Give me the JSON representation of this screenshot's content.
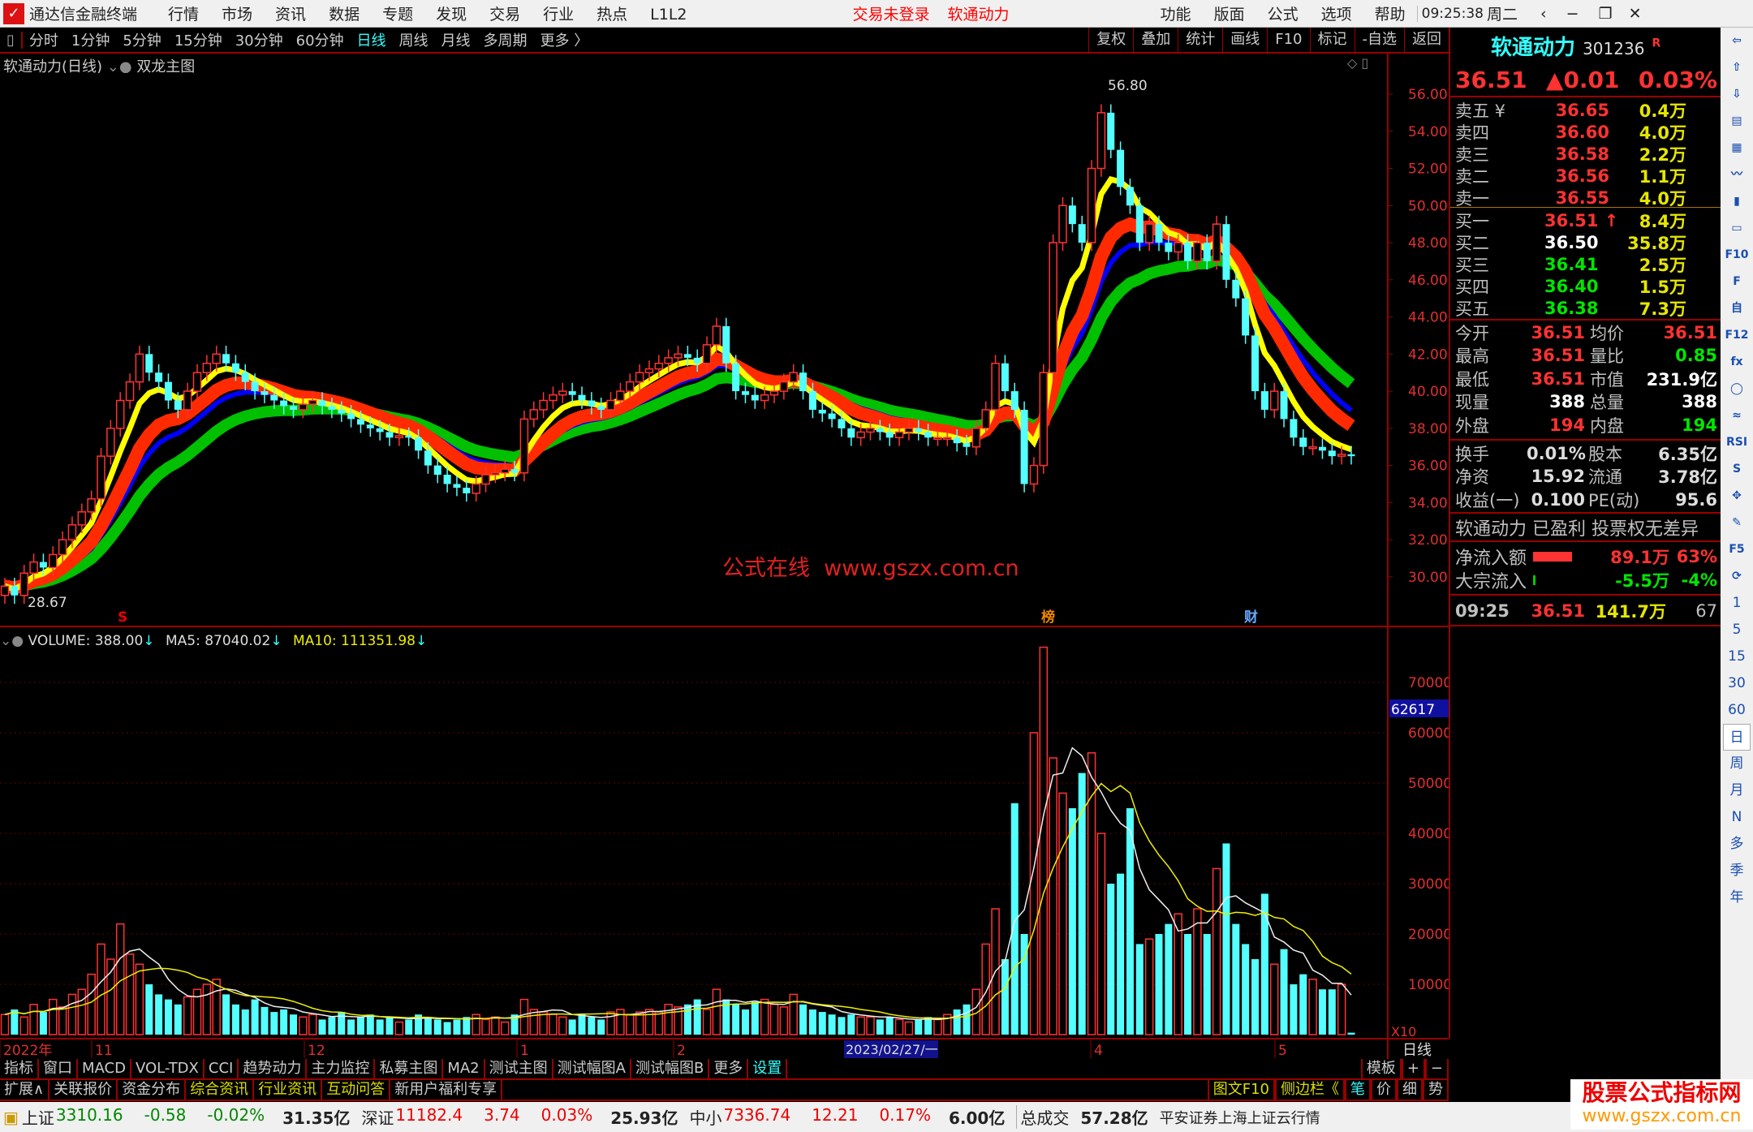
{
  "titlebar": {
    "app_title": "通达信金融终端",
    "menus": [
      "行情",
      "市场",
      "资讯",
      "数据",
      "专题",
      "发现",
      "交易",
      "行业",
      "热点",
      "L1L2"
    ],
    "login_status": "交易未登录",
    "stock_name": "软通动力",
    "right_menus": [
      "功能",
      "版面",
      "公式",
      "选项",
      "帮助"
    ],
    "clock": "09:25:38",
    "weekday": "周二"
  },
  "toolbar": {
    "periods": [
      "分时",
      "1分钟",
      "5分钟",
      "15分钟",
      "30分钟",
      "60分钟",
      "日线",
      "周线",
      "月线",
      "多周期",
      "更多 〉"
    ],
    "active_period": "日线",
    "right_buttons": [
      "复权",
      "叠加",
      "统计",
      "画线",
      "F10",
      "标记",
      "-自选",
      "返回"
    ]
  },
  "chart_title": {
    "stock": "软通动力(日线)",
    "indicator": "双龙主图"
  },
  "volume_legend": {
    "volume": "VOLUME: 388.00",
    "ma5": "MA5: 87040.02",
    "ma10": "MA10: 111351.98"
  },
  "chart_data": {
    "type": "candlestick",
    "price_axis": {
      "ticks": [
        "30.00",
        "32.00",
        "34.00",
        "36.00",
        "38.00",
        "40.00",
        "42.00",
        "44.00",
        "46.00",
        "48.00",
        "50.00",
        "52.00",
        "54.00",
        "56.00"
      ],
      "range": [
        30,
        56
      ]
    },
    "high_label": "56.80",
    "low_label": "28.67",
    "closes": [
      29.5,
      29.0,
      30.2,
      30.8,
      30.5,
      31.2,
      32.0,
      32.8,
      33.5,
      34.2,
      36.5,
      38.0,
      39.5,
      40.5,
      42.0,
      41.0,
      40.5,
      39.5,
      39.0,
      40.0,
      41.0,
      41.5,
      42.0,
      41.5,
      41.0,
      40.5,
      40.0,
      39.8,
      39.5,
      39.2,
      39.0,
      39.3,
      39.5,
      39.2,
      39.0,
      38.8,
      38.5,
      38.2,
      38.0,
      37.8,
      37.5,
      37.6,
      37.5,
      36.8,
      36.0,
      35.5,
      35.0,
      34.8,
      34.5,
      35.0,
      35.5,
      35.6,
      35.8,
      35.6,
      38.5,
      39.0,
      39.5,
      39.8,
      40.0,
      39.8,
      39.5,
      39.2,
      39.0,
      39.5,
      40.0,
      40.5,
      41.0,
      41.2,
      41.5,
      41.8,
      42.0,
      41.8,
      41.5,
      42.5,
      43.5,
      41.5,
      40.0,
      39.8,
      39.5,
      39.8,
      40.0,
      40.5,
      41.0,
      40.0,
      39.0,
      38.8,
      38.5,
      38.0,
      37.5,
      37.8,
      38.0,
      37.8,
      37.5,
      37.8,
      38.0,
      37.8,
      37.5,
      37.5,
      37.5,
      37.2,
      37.0,
      38.0,
      39.0,
      41.5,
      40.0,
      39.0,
      35.0,
      36.0,
      41.0,
      48.0,
      50.0,
      49.0,
      48.0,
      52.0,
      55.0,
      53.0,
      51.0,
      50.0,
      48.0,
      49.0,
      48.0,
      47.5,
      48.0,
      47.0,
      48.0,
      47.0,
      49.0,
      46.0,
      45.0,
      43.0,
      40.0,
      39.0,
      40.0,
      38.5,
      37.5,
      37.0,
      37.0,
      36.8,
      36.5,
      36.6,
      36.5
    ],
    "volumes": [
      4000,
      5000,
      3500,
      6000,
      4500,
      7000,
      5500,
      8000,
      9000,
      12000,
      18000,
      15000,
      22000,
      16000,
      14000,
      10000,
      8000,
      7000,
      6000,
      7500,
      9000,
      10000,
      11000,
      8000,
      6000,
      5000,
      7000,
      5500,
      4500,
      5000,
      4000,
      3500,
      4000,
      3000,
      3500,
      4500,
      3000,
      3500,
      4000,
      3000,
      3500,
      2500,
      3000,
      4000,
      3500,
      3000,
      2500,
      3000,
      3500,
      4000,
      3000,
      3500,
      2500,
      4000,
      7000,
      5000,
      4500,
      4000,
      3500,
      3000,
      4000,
      3500,
      3000,
      4500,
      5000,
      4000,
      4500,
      5000,
      4500,
      6000,
      5500,
      6000,
      7000,
      5000,
      9000,
      7000,
      6000,
      5000,
      6500,
      7000,
      6000,
      5500,
      8000,
      6000,
      5000,
      4500,
      4000,
      3500,
      4000,
      3500,
      3500,
      3000,
      3500,
      3000,
      2500,
      3000,
      3500,
      3000,
      4000,
      5000,
      6000,
      9000,
      18000,
      25000,
      15000,
      46000,
      20000,
      60000,
      77000,
      55000,
      48000,
      45000,
      52000,
      56000,
      40000,
      30000,
      32000,
      45000,
      18000,
      19000,
      20000,
      22000,
      24000,
      20000,
      25000,
      20000,
      33000,
      38000,
      22000,
      18000,
      15000,
      28000,
      14000,
      17000,
      10000,
      12000,
      11000,
      9000,
      9000,
      10000,
      388
    ],
    "volume_axis": {
      "ticks": [
        "10000",
        "20000",
        "30000",
        "40000",
        "50000",
        "60000",
        "70000"
      ],
      "range": [
        0,
        77000
      ],
      "multiplier": "X10",
      "highlight": "62617"
    },
    "markers": [
      "S",
      "榜",
      "财"
    ],
    "date_axis": {
      "labels": [
        "2022年",
        "11",
        "12",
        "1",
        "2",
        "4",
        "5"
      ],
      "cursor_date": "2023/02/27/一",
      "period": "日线"
    },
    "colors": {
      "up": "#ff3232",
      "down": "#54ffff",
      "ma_fast": "#ffff00",
      "ma_band1": "#ff2a00",
      "ma_mid": "#0000ff",
      "ma_band2": "#00c000"
    }
  },
  "watermark": {
    "text": "公式在线  www.gszx.com.cn"
  },
  "quote": {
    "name": "软通动力",
    "code": "301236",
    "flag": "R",
    "price": "36.51",
    "change": "▲0.01",
    "pct": "0.03%",
    "asks": [
      {
        "label": "卖五 ¥",
        "price": "36.65",
        "vol": "0.4万"
      },
      {
        "label": "卖四",
        "price": "36.60",
        "vol": "4.0万"
      },
      {
        "label": "卖三",
        "price": "36.58",
        "vol": "2.2万"
      },
      {
        "label": "卖二",
        "price": "36.56",
        "vol": "1.1万"
      },
      {
        "label": "卖一",
        "price": "36.55",
        "vol": "4.0万"
      }
    ],
    "bids": [
      {
        "label": "买一",
        "price": "36.51 ↑",
        "vol": "8.4万"
      },
      {
        "label": "买二",
        "price": "36.50",
        "vol": "35.8万"
      },
      {
        "label": "买三",
        "price": "36.41",
        "vol": "2.5万"
      },
      {
        "label": "买四",
        "price": "36.40",
        "vol": "1.5万"
      },
      {
        "label": "买五",
        "price": "36.38",
        "vol": "7.3万"
      }
    ],
    "stats": [
      {
        "l1": "今开",
        "v1": "36.51",
        "l2": "均价",
        "v2": "36.51"
      },
      {
        "l1": "最高",
        "v1": "36.51",
        "l2": "量比",
        "v2": "0.85"
      },
      {
        "l1": "最低",
        "v1": "36.51",
        "l2": "市值",
        "v2": "231.9亿"
      },
      {
        "l1": "现量",
        "v1": "388",
        "l2": "总量",
        "v2": "388"
      },
      {
        "l1": "外盘",
        "v1": "194",
        "l2": "内盘",
        "v2": "194"
      }
    ],
    "stats2": [
      {
        "l1": "换手",
        "v1": "0.01%",
        "l2": "股本",
        "v2": "6.35亿"
      },
      {
        "l1": "净资",
        "v1": "15.92",
        "l2": "流通",
        "v2": "3.78亿"
      },
      {
        "l1": "收益(一)",
        "v1": "0.100",
        "l2": "PE(动)",
        "v2": "95.6"
      }
    ],
    "notice": "软通动力 已盈利 投票权无差异",
    "flows": [
      {
        "label": "净流入额",
        "amount": "89.1万",
        "pct": "63%",
        "bar": 0.63
      },
      {
        "label": "大宗流入",
        "amount": "-5.5万",
        "pct": "-4%",
        "bar": 0.04
      }
    ],
    "tick": {
      "time": "09:25",
      "price": "36.51",
      "vol": "141.7万",
      "count": "67"
    }
  },
  "sidebar": {
    "icons": [
      "arrow-left-icon",
      "arrow-up-icon",
      "arrow-down-icon",
      "report-icon",
      "grid-icon",
      "line-chart-icon",
      "candles-icon",
      "window-icon",
      "f10-icon",
      "f10-alt-icon",
      "self-select-icon",
      "f12-icon",
      "formula-icon",
      "circle-icon",
      "wave-icon",
      "rsi-icon",
      "s-icon",
      "move-icon",
      "pencil-icon",
      "f5-icon",
      "refresh-icon"
    ],
    "periods": [
      "1",
      "5",
      "15",
      "30",
      "60",
      "日",
      "周",
      "月",
      "N",
      "多",
      "季",
      "年"
    ]
  },
  "bottom_tabs": {
    "row1": [
      "指标",
      "窗口",
      "MACD",
      "VOL-TDX",
      "CCI",
      "趋势动力",
      "主力监控",
      "私募主图",
      "MA2",
      "测试主图",
      "测试幅图A",
      "测试幅图B",
      "更多",
      "设置"
    ],
    "row1_right": [
      "模板",
      "+",
      "−"
    ],
    "row2": [
      "扩展∧",
      "关联报价",
      "资金分布",
      "综合资讯",
      "行业资讯",
      "互动问答",
      "新用户福利专享"
    ],
    "row2_right": [
      "图文F10",
      "侧边栏《",
      "笔",
      "价",
      "细",
      "势"
    ]
  },
  "status": {
    "items": [
      {
        "name": "上证",
        "v": "3310.16",
        "c": "-0.58",
        "p": "-0.02%",
        "a": "31.35亿",
        "dir": "down"
      },
      {
        "name": "深证",
        "v": "11182.4",
        "c": "3.74",
        "p": "0.03%",
        "a": "25.93亿",
        "dir": "up"
      },
      {
        "name": "中小",
        "v": "7336.74",
        "c": "12.21",
        "p": "0.17%",
        "a": "6.00亿",
        "dir": "up"
      }
    ],
    "total_label": "总成交",
    "total": "57.28亿",
    "source": "平安证券上海上证云行情"
  },
  "brand_watermark": {
    "title": "股票公式指标网",
    "url": "www.gszx.com.cn"
  }
}
